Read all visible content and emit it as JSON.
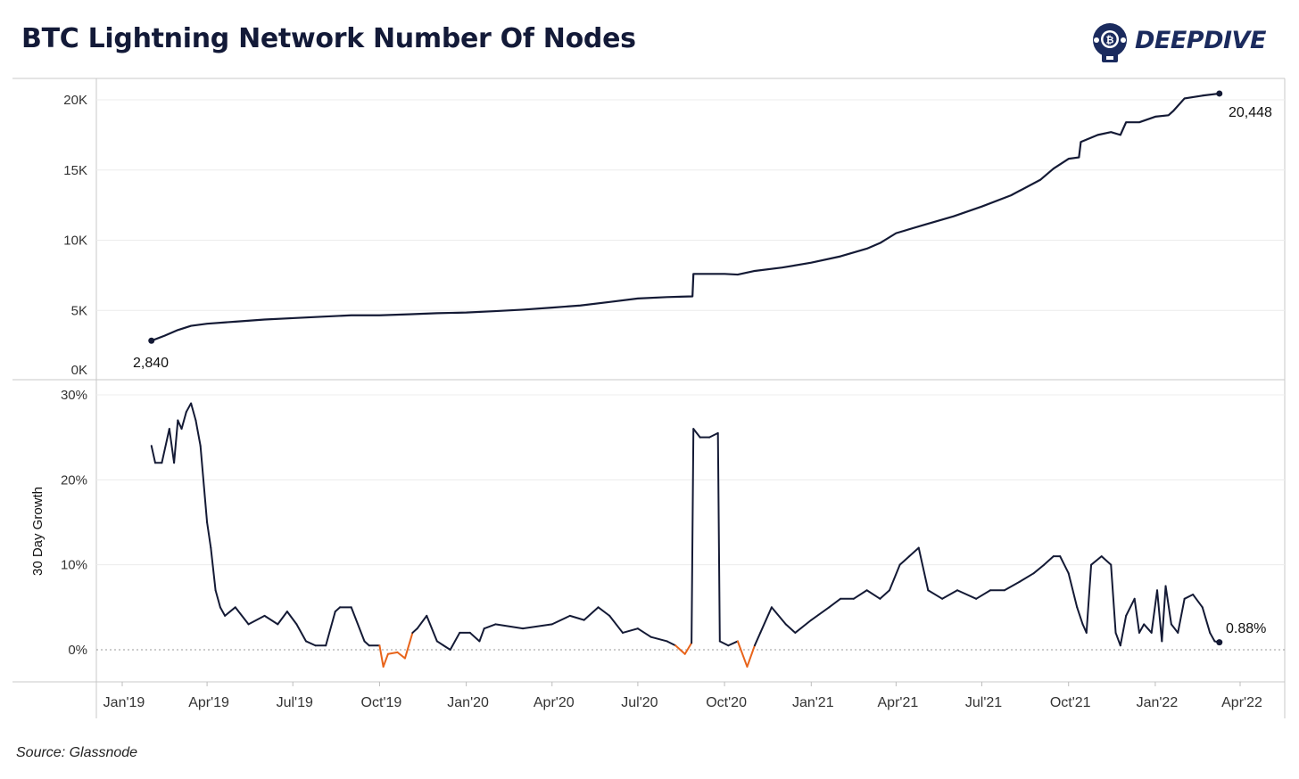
{
  "header": {
    "title": "BTC Lightning Network Number Of Nodes",
    "logo_text": "DEEPDIVE",
    "brand_color": "#1b2b5e"
  },
  "footer": {
    "source": "Source: Glassnode"
  },
  "chart_data": [
    {
      "type": "line",
      "title": "",
      "ylabel": "",
      "ylim": [
        0,
        21000
      ],
      "yticks": [
        "0K",
        "5K",
        "10K",
        "15K",
        "20K"
      ],
      "ytick_values": [
        0,
        5000,
        10000,
        15000,
        20000
      ],
      "grid": true,
      "line_color": "#141a35",
      "start_label": "2,840",
      "end_label": "20,448",
      "series": [
        {
          "x": [
            "2019-02-01",
            "2019-02-15",
            "2019-03-01",
            "2019-03-15",
            "2019-04-01",
            "2019-05-01",
            "2019-06-01",
            "2019-07-01",
            "2019-08-01",
            "2019-09-01",
            "2019-10-01",
            "2019-11-01",
            "2019-12-01",
            "2020-01-01",
            "2020-02-01",
            "2020-03-01",
            "2020-04-01",
            "2020-05-01",
            "2020-06-01",
            "2020-07-01",
            "2020-08-01",
            "2020-08-28",
            "2020-08-29",
            "2020-09-15",
            "2020-10-01",
            "2020-10-15",
            "2020-11-01",
            "2020-12-01",
            "2021-01-01",
            "2021-02-01",
            "2021-03-01",
            "2021-03-15",
            "2021-04-01",
            "2021-05-01",
            "2021-06-01",
            "2021-07-01",
            "2021-08-01",
            "2021-09-01",
            "2021-09-15",
            "2021-10-01",
            "2021-10-12",
            "2021-10-14",
            "2021-11-01",
            "2021-11-15",
            "2021-11-25",
            "2021-12-01",
            "2021-12-15",
            "2022-01-01",
            "2022-01-15",
            "2022-01-20",
            "2022-02-01",
            "2022-02-20",
            "2022-03-10"
          ],
          "y": [
            2840,
            3200,
            3600,
            3900,
            4050,
            4200,
            4350,
            4450,
            4550,
            4650,
            4650,
            4720,
            4800,
            4850,
            4950,
            5050,
            5200,
            5350,
            5600,
            5850,
            5950,
            6000,
            7600,
            7600,
            7600,
            7550,
            7800,
            8050,
            8400,
            8850,
            9400,
            9800,
            10500,
            11100,
            11700,
            12400,
            13200,
            14300,
            15100,
            15800,
            15900,
            17000,
            17500,
            17700,
            17500,
            18400,
            18400,
            18800,
            18900,
            19200,
            20100,
            20300,
            20448
          ]
        }
      ]
    },
    {
      "type": "line",
      "title": "",
      "ylabel": "30 Day Growth",
      "ylim": [
        -0.035,
        0.31
      ],
      "yticks": [
        "0%",
        "10%",
        "20%",
        "30%"
      ],
      "ytick_values": [
        0,
        0.1,
        0.2,
        0.3
      ],
      "grid": true,
      "line_color": "#141a35",
      "negative_color": "#e8641b",
      "zero_line": "dotted",
      "end_label": "0.88%",
      "xticks": [
        "Jan'19",
        "Apr'19",
        "Jul'19",
        "Oct'19",
        "Jan'20",
        "Apr'20",
        "Jul'20",
        "Oct'20",
        "Jan'21",
        "Apr'21",
        "Jul'21",
        "Oct'21",
        "Jan'22",
        "Apr'22"
      ],
      "xtick_values": [
        "2019-01-01",
        "2019-04-01",
        "2019-07-01",
        "2019-10-01",
        "2020-01-01",
        "2020-04-01",
        "2020-07-01",
        "2020-10-01",
        "2021-01-01",
        "2021-04-01",
        "2021-07-01",
        "2021-10-01",
        "2022-01-01",
        "2022-04-01"
      ],
      "series": [
        {
          "x": [
            "2019-02-01",
            "2019-02-05",
            "2019-02-12",
            "2019-02-20",
            "2019-02-25",
            "2019-03-01",
            "2019-03-05",
            "2019-03-10",
            "2019-03-15",
            "2019-03-20",
            "2019-03-25",
            "2019-04-01",
            "2019-04-05",
            "2019-04-10",
            "2019-04-15",
            "2019-04-20",
            "2019-05-01",
            "2019-05-15",
            "2019-06-01",
            "2019-06-15",
            "2019-06-25",
            "2019-07-05",
            "2019-07-15",
            "2019-07-25",
            "2019-08-05",
            "2019-08-15",
            "2019-08-20",
            "2019-09-01",
            "2019-09-15",
            "2019-09-20",
            "2019-10-01",
            "2019-10-05",
            "2019-10-10",
            "2019-10-20",
            "2019-10-28",
            "2019-11-05",
            "2019-11-10",
            "2019-11-20",
            "2019-12-01",
            "2019-12-08",
            "2019-12-15",
            "2019-12-25",
            "2020-01-05",
            "2020-01-15",
            "2020-01-20",
            "2020-02-01",
            "2020-03-01",
            "2020-04-01",
            "2020-04-20",
            "2020-05-05",
            "2020-05-20",
            "2020-06-01",
            "2020-06-15",
            "2020-07-01",
            "2020-07-15",
            "2020-08-01",
            "2020-08-10",
            "2020-08-20",
            "2020-08-27",
            "2020-08-29",
            "2020-09-05",
            "2020-09-15",
            "2020-09-24",
            "2020-09-26",
            "2020-10-05",
            "2020-10-15",
            "2020-10-25",
            "2020-11-02",
            "2020-11-08",
            "2020-11-20",
            "2020-12-05",
            "2020-12-15",
            "2021-01-01",
            "2021-01-20",
            "2021-02-01",
            "2021-02-15",
            "2021-03-01",
            "2021-03-15",
            "2021-03-25",
            "2021-04-05",
            "2021-04-15",
            "2021-04-25",
            "2021-05-05",
            "2021-05-20",
            "2021-06-05",
            "2021-06-25",
            "2021-07-10",
            "2021-07-25",
            "2021-08-10",
            "2021-08-25",
            "2021-09-05",
            "2021-09-15",
            "2021-09-22",
            "2021-10-01",
            "2021-10-10",
            "2021-10-16",
            "2021-10-20",
            "2021-10-25",
            "2021-11-05",
            "2021-11-15",
            "2021-11-20",
            "2021-11-25",
            "2021-12-01",
            "2021-12-10",
            "2021-12-15",
            "2021-12-20",
            "2021-12-28",
            "2022-01-03",
            "2022-01-08",
            "2022-01-12",
            "2022-01-18",
            "2022-01-25",
            "2022-02-01",
            "2022-02-10",
            "2022-02-20",
            "2022-02-28",
            "2022-03-05",
            "2022-03-10"
          ],
          "y": [
            0.24,
            0.22,
            0.22,
            0.26,
            0.22,
            0.27,
            0.26,
            0.28,
            0.29,
            0.27,
            0.24,
            0.15,
            0.12,
            0.07,
            0.05,
            0.04,
            0.05,
            0.03,
            0.04,
            0.03,
            0.045,
            0.03,
            0.01,
            0.005,
            0.005,
            0.045,
            0.05,
            0.05,
            0.01,
            0.005,
            0.005,
            -0.02,
            -0.005,
            -0.003,
            -0.01,
            0.02,
            0.025,
            0.04,
            0.01,
            0.005,
            0.0,
            0.02,
            0.02,
            0.01,
            0.025,
            0.03,
            0.025,
            0.03,
            0.04,
            0.035,
            0.05,
            0.04,
            0.02,
            0.025,
            0.015,
            0.01,
            0.005,
            -0.005,
            0.008,
            0.26,
            0.25,
            0.25,
            0.255,
            0.01,
            0.005,
            0.01,
            -0.02,
            0.005,
            0.02,
            0.05,
            0.03,
            0.02,
            0.035,
            0.05,
            0.06,
            0.06,
            0.07,
            0.06,
            0.07,
            0.1,
            0.11,
            0.12,
            0.07,
            0.06,
            0.07,
            0.06,
            0.07,
            0.07,
            0.08,
            0.09,
            0.1,
            0.11,
            0.11,
            0.09,
            0.05,
            0.03,
            0.02,
            0.1,
            0.11,
            0.1,
            0.02,
            0.005,
            0.04,
            0.06,
            0.02,
            0.03,
            0.02,
            0.07,
            0.01,
            0.075,
            0.03,
            0.02,
            0.06,
            0.065,
            0.05,
            0.02,
            0.01,
            0.0088
          ]
        }
      ]
    }
  ]
}
